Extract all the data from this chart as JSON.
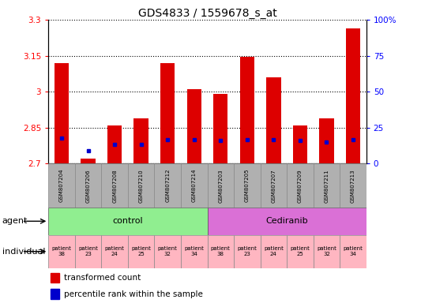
{
  "title": "GDS4833 / 1559678_s_at",
  "samples": [
    "GSM807204",
    "GSM807206",
    "GSM807208",
    "GSM807210",
    "GSM807212",
    "GSM807214",
    "GSM807203",
    "GSM807205",
    "GSM807207",
    "GSM807209",
    "GSM807211",
    "GSM807213"
  ],
  "transformed_count": [
    3.12,
    2.72,
    2.86,
    2.89,
    3.12,
    3.01,
    2.99,
    3.145,
    3.06,
    2.86,
    2.89,
    3.265
  ],
  "percentile_values": [
    2.805,
    2.755,
    2.78,
    2.78,
    2.8,
    2.8,
    2.795,
    2.8,
    2.8,
    2.795,
    2.79,
    2.8
  ],
  "ylim_left": [
    2.7,
    3.3
  ],
  "ylim_right": [
    0,
    100
  ],
  "yticks_left": [
    2.7,
    2.85,
    3.0,
    3.15,
    3.3
  ],
  "yticks_right": [
    0,
    25,
    50,
    75,
    100
  ],
  "ytick_labels_left": [
    "2.7",
    "2.85",
    "3",
    "3.15",
    "3.3"
  ],
  "ytick_labels_right": [
    "0",
    "25",
    "50",
    "75",
    "100%"
  ],
  "bar_color": "#dd0000",
  "percentile_color": "#0000cc",
  "base_value": 2.7,
  "individuals": [
    "patient\n38",
    "patient\n23",
    "patient\n24",
    "patient\n25",
    "patient\n32",
    "patient\n34",
    "patient\n38",
    "patient\n23",
    "patient\n24",
    "patient\n25",
    "patient\n32",
    "patient\n34"
  ],
  "control_color": "#90ee90",
  "cediranib_color": "#da70d6",
  "individual_bg_color": "#ffb6c1",
  "sample_bg_color": "#b0b0b0",
  "legend_red": "transformed count",
  "legend_blue": "percentile rank within the sample",
  "title_fontsize": 10,
  "tick_fontsize": 7.5,
  "bar_width": 0.55
}
